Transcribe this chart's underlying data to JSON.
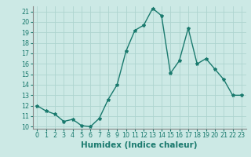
{
  "x": [
    0,
    1,
    2,
    3,
    4,
    5,
    6,
    7,
    8,
    9,
    10,
    11,
    12,
    13,
    14,
    15,
    16,
    17,
    18,
    19,
    20,
    21,
    22,
    23
  ],
  "y": [
    12,
    11.5,
    11.2,
    10.5,
    10.7,
    10.1,
    10.0,
    10.8,
    12.6,
    14.0,
    17.2,
    19.2,
    19.7,
    21.3,
    20.6,
    15.1,
    16.3,
    19.4,
    16.0,
    16.5,
    15.5,
    14.5,
    13.0,
    13.0
  ],
  "line_color": "#1a7a6e",
  "marker": "*",
  "marker_size": 3,
  "bg_color": "#cce9e5",
  "grid_color": "#aed4cf",
  "xlabel": "Humidex (Indice chaleur)",
  "ylim": [
    9.8,
    21.5
  ],
  "xlim": [
    -0.5,
    23.5
  ],
  "yticks": [
    10,
    11,
    12,
    13,
    14,
    15,
    16,
    17,
    18,
    19,
    20,
    21
  ],
  "xticks": [
    0,
    1,
    2,
    3,
    4,
    5,
    6,
    7,
    8,
    9,
    10,
    11,
    12,
    13,
    14,
    15,
    16,
    17,
    18,
    19,
    20,
    21,
    22,
    23
  ],
  "tick_label_fontsize": 5.8,
  "xlabel_fontsize": 7.5,
  "line_width": 1.0,
  "spine_color": "#888888",
  "tick_color": "#1a7a6e"
}
